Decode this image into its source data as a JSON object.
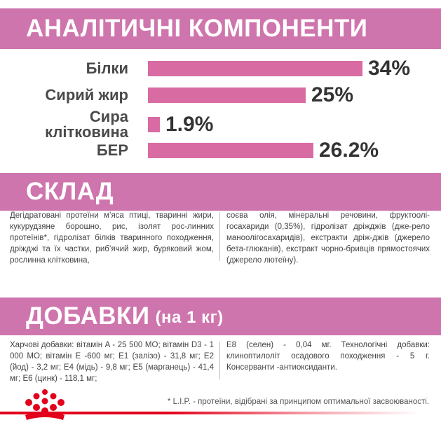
{
  "sections": {
    "analysis_title": "АНАЛІТИЧНІ КОМПОНЕНТИ",
    "composition_title": "СКЛАД",
    "additives_title": "ДОБАВКИ",
    "additives_subtitle": "(на 1 кг)"
  },
  "chart_data": {
    "type": "bar",
    "categories": [
      "Білки",
      "Сирий жир",
      "Сира клітковина",
      "БЕР"
    ],
    "category_lines": [
      [
        "Білки"
      ],
      [
        "Сирий жир"
      ],
      [
        "Сира",
        "клітковина"
      ],
      [
        "БЕР"
      ]
    ],
    "values": [
      34,
      25,
      1.9,
      26.2
    ],
    "value_labels": [
      "34%",
      "25%",
      "1.9%",
      "26.2%"
    ],
    "unit": "%",
    "orientation": "horizontal",
    "xlim": [
      0,
      34
    ],
    "bar_color": "#d96ba3"
  },
  "composition": {
    "left": "Дегідратовані протеїни м’яса птиці, тваринні жири, кукурудзяне борошно, рис, ізолят рос-линних протеїнів*, гідролізат білків тваринного походження, дріжджі та їх частки, риб’ячий жир, буряковий жом, рослинна клітковина,",
    "right": "соєва олія, мінеральні речовини, фруктоолі-госахариди (0,35%), гідролізат дріжджів (дже-рело маноолігосахаридів), екстракти дріж-джів (джерело бета-глюканів), екстракт чорно-бривців прямостоячих (джерело лютеїну)."
  },
  "additives": {
    "left": "Харчові добавки: вітамін A - 25 500 МО; вітамін D3 - 1 000 МО; вітамін E -600 мг; E1 (залізо) - 31,8 мг; E2 (йод) - 3,2 мг; E4 (мідь) - 9,8 мг; E5 (марганець) - 41,4 мг; E6 (цинк) - 118,1 мг;",
    "right": "E8 (селен) - 0,04 мг. Технологічні добавки: клиноптилоліт осадового походження - 5 г. Консерванти -антиоксиданти."
  },
  "footnote": "* L.I.P. - протеїни, відібрані за принципом оптимальної засвоюваності.",
  "colors": {
    "banner": "#cf75ad",
    "bar": "#d96ba3",
    "brand_red": "#e2001a"
  },
  "logo": {
    "icon": "royal-canin-crown-icon"
  }
}
